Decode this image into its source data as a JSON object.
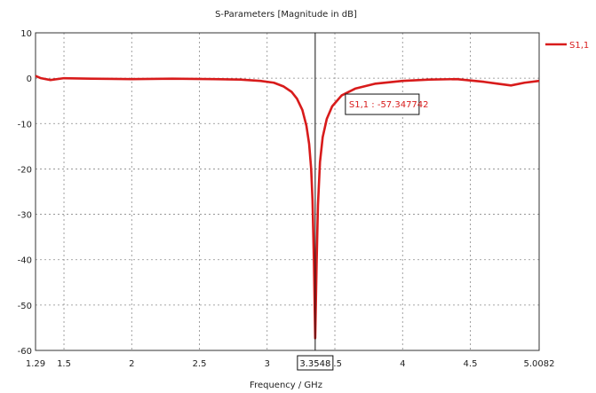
{
  "chart_data": {
    "type": "line",
    "title": "S-Parameters [Magnitude in dB]",
    "xlabel": "Frequency / GHz",
    "ylabel": "",
    "xlim": [
      1.29,
      5.0082
    ],
    "ylim": [
      -60,
      10
    ],
    "x_ticks": [
      1.29,
      1.5,
      2,
      2.5,
      3,
      3.5,
      4,
      4.5,
      5.0082
    ],
    "x_tick_labels": [
      "1.29",
      "1.5",
      "2",
      "2.5",
      "3",
      "3.5",
      "4",
      "4.5",
      "5.0082"
    ],
    "y_ticks": [
      10,
      0,
      -10,
      -20,
      -30,
      -40,
      -50,
      -60
    ],
    "y_tick_labels": [
      "10",
      "0",
      "-10",
      "-20",
      "-30",
      "-40",
      "-50",
      "-60"
    ],
    "grid": true,
    "legend_position": "top-right",
    "series": [
      {
        "name": "S1,1",
        "color": "#d81b1b",
        "x": [
          1.29,
          1.33,
          1.4,
          1.5,
          1.7,
          2.0,
          2.3,
          2.6,
          2.8,
          2.95,
          3.05,
          3.12,
          3.18,
          3.22,
          3.26,
          3.29,
          3.31,
          3.325,
          3.335,
          3.345,
          3.3548,
          3.365,
          3.375,
          3.39,
          3.41,
          3.44,
          3.48,
          3.55,
          3.65,
          3.8,
          4.0,
          4.2,
          4.4,
          4.6,
          4.7,
          4.8,
          4.9,
          5.0082
        ],
        "y": [
          0.5,
          0.0,
          -0.4,
          0.0,
          -0.1,
          -0.2,
          -0.1,
          -0.2,
          -0.3,
          -0.6,
          -1.0,
          -1.8,
          -3.0,
          -4.5,
          -7.0,
          -10.5,
          -14.5,
          -20.0,
          -27.0,
          -40.0,
          -57.3,
          -41.0,
          -28.0,
          -18.5,
          -13.0,
          -9.0,
          -6.2,
          -3.8,
          -2.3,
          -1.2,
          -0.6,
          -0.3,
          -0.2,
          -0.8,
          -1.2,
          -1.6,
          -1.0,
          -0.6
        ]
      }
    ],
    "marker": {
      "x": 3.3548,
      "x_label": "3.3548",
      "label": "S1,1 : -57.347742"
    }
  }
}
